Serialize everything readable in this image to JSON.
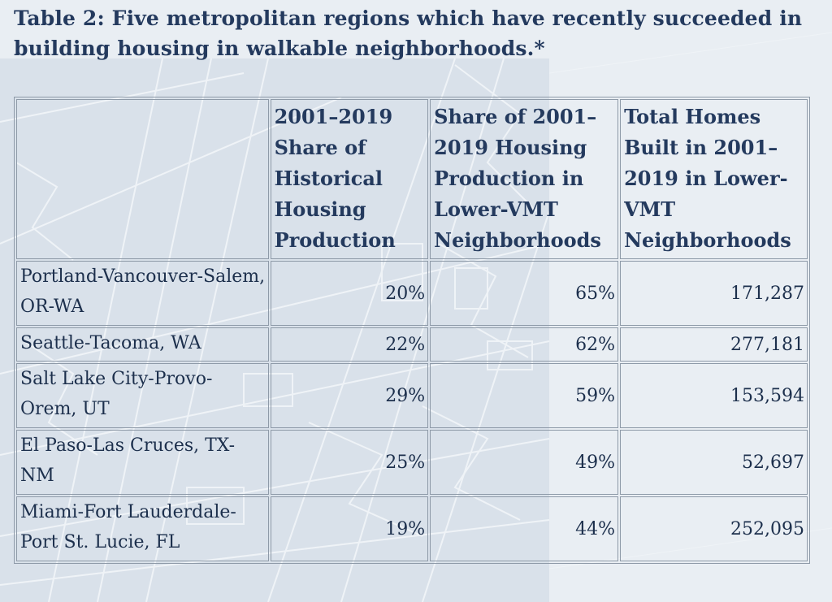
{
  "title": "Table 2: Five metropolitan regions which have recently succeeded in building housing in walkable neighborhoods.*",
  "table": {
    "headers": [
      "",
      "2001–2019 Share of Historical Housing Production",
      "Share of 2001– 2019 Housing Production in Lower-VMT Neighborhoods",
      "Total Homes Built in 2001– 2019 in Lower-VMT Neighborhoods"
    ],
    "rows": [
      {
        "region": "Portland-Vancouver-Salem, OR-WA",
        "share_historical": "20%",
        "share_lower_vmt": "65%",
        "total_homes": "171,287"
      },
      {
        "region": "Seattle-Tacoma, WA",
        "share_historical": "22%",
        "share_lower_vmt": "62%",
        "total_homes": "277,181"
      },
      {
        "region": "Salt Lake City-Provo-Orem, UT",
        "share_historical": "29%",
        "share_lower_vmt": "59%",
        "total_homes": "153,594"
      },
      {
        "region": "El Paso-Las Cruces, TX-NM",
        "share_historical": "25%",
        "share_lower_vmt": "49%",
        "total_homes": "52,697"
      },
      {
        "region": "Miami-Fort Lauderdale-Port St. Lucie, FL",
        "share_historical": "19%",
        "share_lower_vmt": "44%",
        "total_homes": "252,095"
      }
    ]
  },
  "colors": {
    "background": "#e9eef3",
    "map_panel": "#d9e1ea",
    "map_lines": "#ffffff",
    "text": "#1c2f4c",
    "title": "#243a5e",
    "border": "#8e9aa8"
  }
}
